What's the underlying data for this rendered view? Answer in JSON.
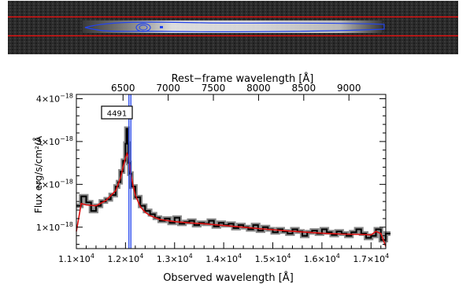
{
  "chart_data": {
    "type": "line",
    "top_xlabel": "Rest−frame wavelength [Å]",
    "xlabel": "Observed wavelength [Å]",
    "ylabel": "Flux erg/s/cm²/Å",
    "xlim": [
      11000,
      17300
    ],
    "ylim": [
      5e-19,
      4.1e-18
    ],
    "annotation": "4491",
    "bottom_ticks": [
      {
        "value": 11000,
        "mant": "1.1×10",
        "exp": "4"
      },
      {
        "value": 12000,
        "mant": "1.2×10",
        "exp": "4"
      },
      {
        "value": 13000,
        "mant": "1.3×10",
        "exp": "4"
      },
      {
        "value": 14000,
        "mant": "1.4×10",
        "exp": "4"
      },
      {
        "value": 15000,
        "mant": "1.5×10",
        "exp": "4"
      },
      {
        "value": 16000,
        "mant": "1.6×10",
        "exp": "4"
      },
      {
        "value": 17000,
        "mant": "1.7×10",
        "exp": "4"
      }
    ],
    "top_ticks": [
      {
        "label": "6500",
        "observed": 11950
      },
      {
        "label": "7000",
        "observed": 12870
      },
      {
        "label": "7500",
        "observed": 13790
      },
      {
        "label": "8000",
        "observed": 14710
      },
      {
        "label": "8500",
        "observed": 15630
      },
      {
        "label": "9000",
        "observed": 16550
      }
    ],
    "y_ticks": [
      {
        "value": 1e-18,
        "mant": "1×10",
        "exp": "−18"
      },
      {
        "value": 2e-18,
        "mant": "2×10",
        "exp": "−18"
      },
      {
        "value": 3e-18,
        "mant": "3×10",
        "exp": "−18"
      },
      {
        "value": 4e-18,
        "mant": "4×10",
        "exp": "−18"
      }
    ],
    "vlines": [
      12070,
      12110
    ],
    "colors": {
      "spectrum": "#000000",
      "model": "#dd1111",
      "marker": "#2244ee",
      "error_band": "#888888"
    },
    "series": [
      {
        "kind": "observed-spectrum",
        "x": [
          11000,
          11100,
          11200,
          11300,
          11400,
          11500,
          11600,
          11700,
          11800,
          11850,
          11900,
          11950,
          12000,
          12020,
          12040,
          12060,
          12080,
          12120,
          12200,
          12300,
          12400,
          12500,
          12600,
          12700,
          12800,
          12900,
          13000,
          13100,
          13200,
          13300,
          13400,
          13500,
          13600,
          13700,
          13800,
          13900,
          14000,
          14100,
          14200,
          14300,
          14400,
          14500,
          14600,
          14700,
          14800,
          14900,
          15000,
          15100,
          15200,
          15300,
          15400,
          15500,
          15600,
          15700,
          15800,
          15900,
          16000,
          16100,
          16200,
          16300,
          16400,
          16500,
          16600,
          16700,
          16800,
          16900,
          17000,
          17100,
          17200,
          17300
        ],
        "y": [
          1.5e-18,
          1.72e-18,
          1.58e-18,
          1.38e-18,
          1.5e-18,
          1.6e-18,
          1.65e-18,
          1.75e-18,
          1.95e-18,
          2.05e-18,
          2.3e-18,
          2.55e-18,
          2.95e-18,
          3.3e-18,
          2.95e-18,
          2.5e-18,
          2.25e-18,
          1.95e-18,
          1.7e-18,
          1.5e-18,
          1.38e-18,
          1.3e-18,
          1.22e-18,
          1.15e-18,
          1.2e-18,
          1.1e-18,
          1.22e-18,
          1.08e-18,
          1.12e-18,
          1.15e-18,
          1.05e-18,
          1.1e-18,
          1.08e-18,
          1.15e-18,
          1.02e-18,
          1.1e-18,
          1.05e-18,
          1.08e-18,
          9.8e-19,
          1.05e-18,
          1e-18,
          9.5e-19,
          1.05e-18,
          9.2e-19,
          1e-18,
          9.5e-19,
          8.8e-19,
          9.5e-19,
          9e-19,
          8.5e-19,
          9.5e-19,
          9e-19,
          8e-19,
          8.8e-19,
          9.2e-19,
          8.5e-19,
          9.5e-19,
          8.8e-19,
          8.2e-19,
          9e-19,
          8.5e-19,
          8e-19,
          8.8e-19,
          9.5e-19,
          8.5e-19,
          7.5e-19,
          8e-19,
          9.5e-19,
          7e-19,
          8.5e-19
        ]
      },
      {
        "kind": "model-fit",
        "x": [
          11000,
          11100,
          11200,
          11400,
          11600,
          11800,
          11900,
          11950,
          12000,
          12030,
          12060,
          12100,
          12150,
          12200,
          12300,
          12400,
          12500,
          12700,
          13000,
          13300,
          13600,
          14000,
          14400,
          14800,
          15200,
          15600,
          16000,
          16400,
          16800,
          17000,
          17100,
          17200,
          17300
        ],
        "y": [
          9e-19,
          1.55e-18,
          1.52e-18,
          1.5e-18,
          1.62e-18,
          1.85e-18,
          2.15e-18,
          2.4e-18,
          2.62e-18,
          2.72e-18,
          2.65e-18,
          2.3e-18,
          2e-18,
          1.75e-18,
          1.48e-18,
          1.35e-18,
          1.27e-18,
          1.18e-18,
          1.13e-18,
          1.1e-18,
          1.08e-18,
          1.04e-18,
          1e-18,
          9.6e-19,
          9.2e-19,
          8.9e-19,
          8.6e-19,
          8.4e-19,
          8.3e-19,
          8.2e-19,
          9e-19,
          8.5e-19,
          5.5e-19
        ]
      }
    ]
  }
}
